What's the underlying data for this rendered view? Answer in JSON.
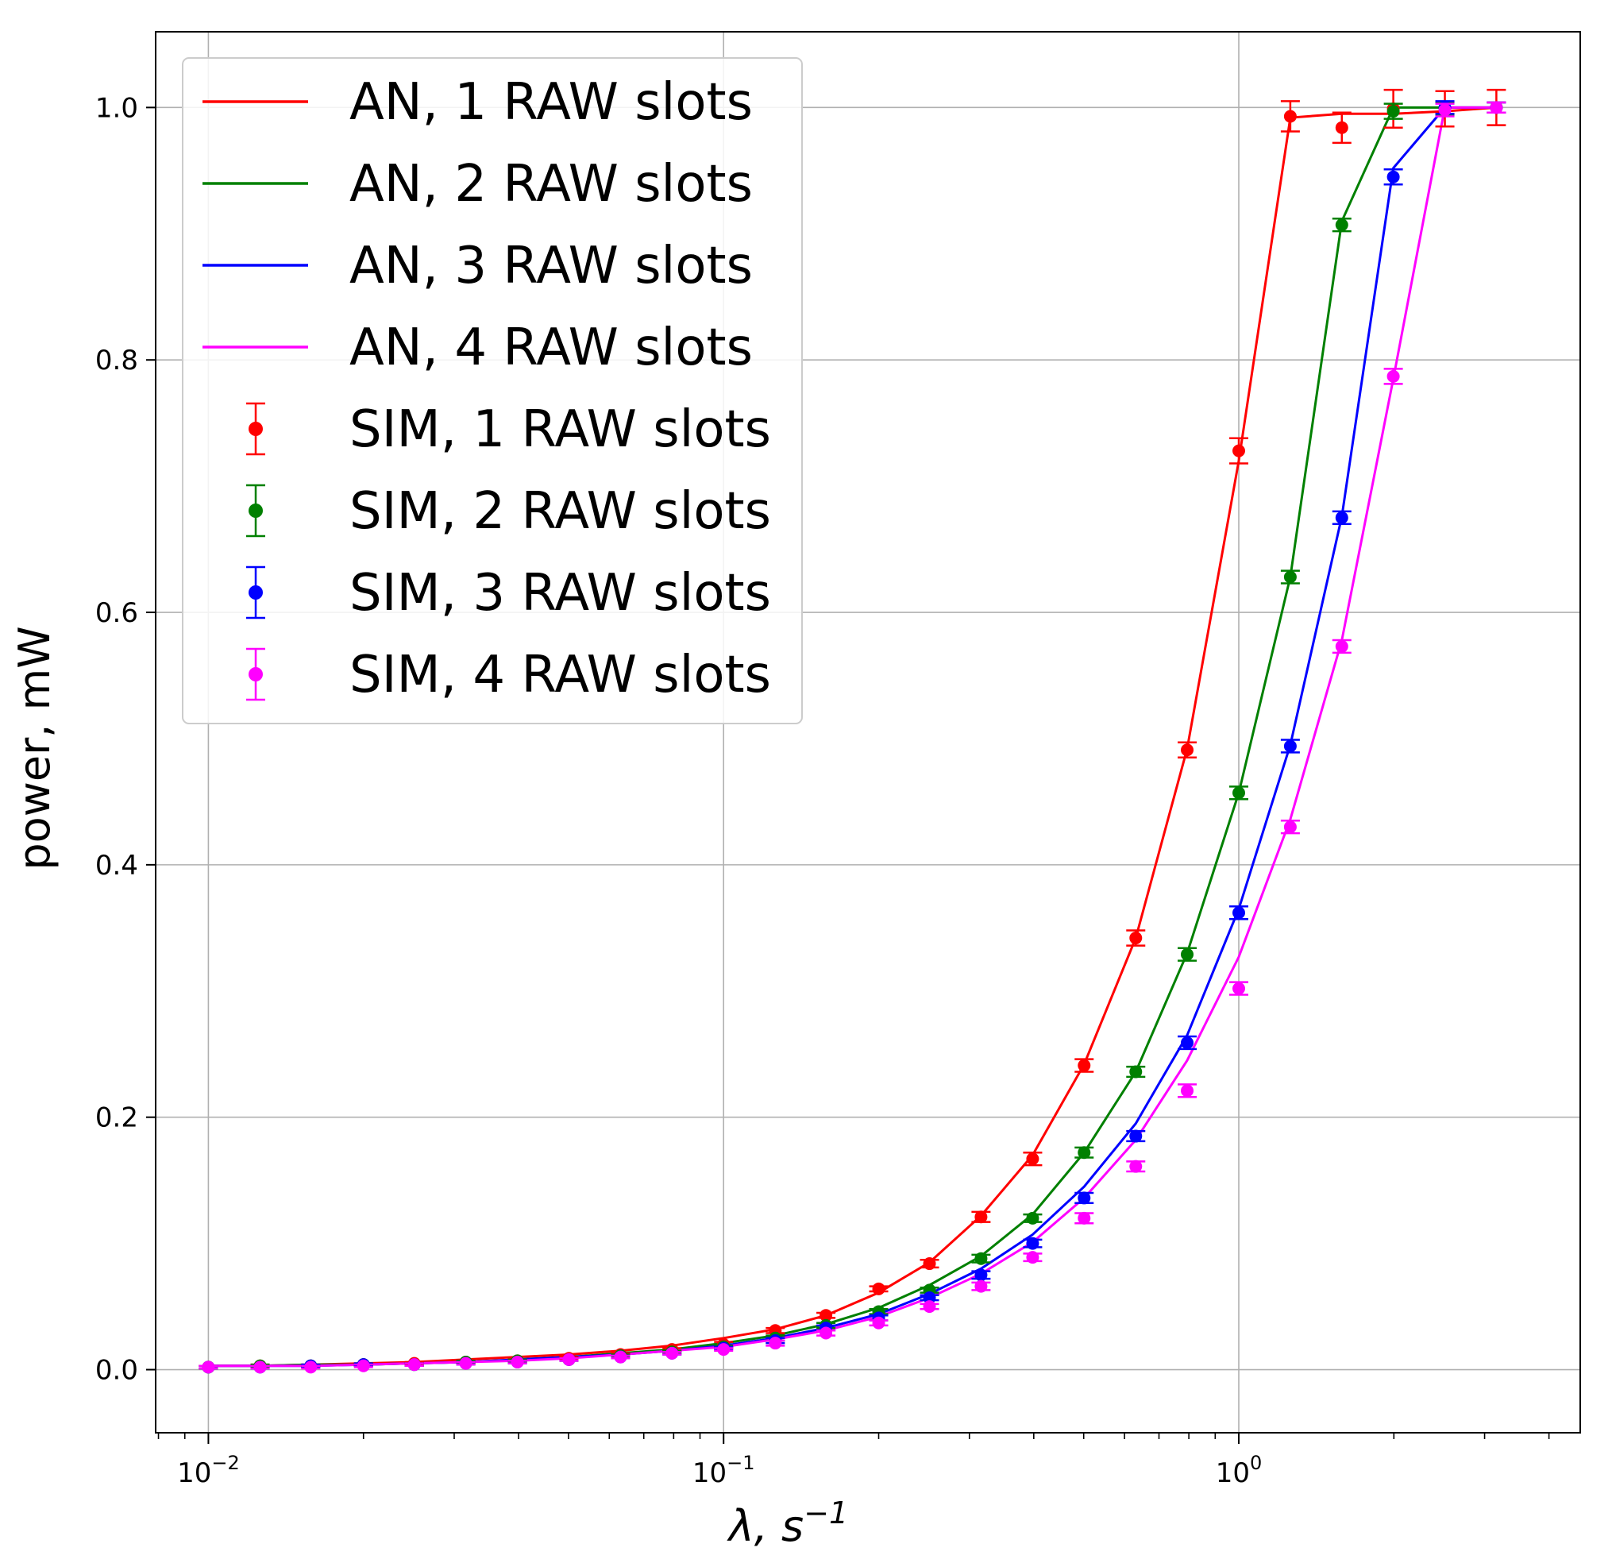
{
  "chart_data": {
    "type": "line",
    "xscale": "log",
    "xlim": [
      0.0079,
      4.6
    ],
    "ylim": [
      -0.05,
      1.06
    ],
    "grid": true,
    "legend_position": "upper-left",
    "xlabel_main": "λ, s",
    "xlabel_sup": "−1",
    "ylabel": "power, mW",
    "x_ticks": [
      {
        "value": 0.01,
        "base": "10",
        "exp": "−2"
      },
      {
        "value": 0.1,
        "base": "10",
        "exp": "−1"
      },
      {
        "value": 1,
        "base": "10",
        "exp": "0"
      }
    ],
    "y_ticks": [
      {
        "value": 0.0,
        "label": "0.0"
      },
      {
        "value": 0.2,
        "label": "0.2"
      },
      {
        "value": 0.4,
        "label": "0.4"
      },
      {
        "value": 0.6,
        "label": "0.6"
      },
      {
        "value": 0.8,
        "label": "0.8"
      },
      {
        "value": 1.0,
        "label": "1.0"
      }
    ],
    "x": [
      0.01,
      0.0126,
      0.0158,
      0.02,
      0.0251,
      0.0316,
      0.0398,
      0.0501,
      0.0631,
      0.0794,
      0.1,
      0.126,
      0.158,
      0.2,
      0.251,
      0.316,
      0.398,
      0.501,
      0.631,
      0.794,
      1.0,
      1.259,
      1.585,
      1.995,
      2.512,
      3.162
    ],
    "series": [
      {
        "name": "AN, 1 RAW slots",
        "kind": "line",
        "color": "#ff0000",
        "values": [
          0.003,
          0.003,
          0.004,
          0.005,
          0.006,
          0.008,
          0.01,
          0.012,
          0.015,
          0.019,
          0.025,
          0.032,
          0.043,
          0.061,
          0.085,
          0.122,
          0.17,
          0.242,
          0.342,
          0.492,
          0.72,
          0.992,
          0.995,
          0.995,
          0.997,
          1.0
        ]
      },
      {
        "name": "AN, 2 RAW slots",
        "kind": "line",
        "color": "#008000",
        "values": [
          0.003,
          0.003,
          0.004,
          0.004,
          0.005,
          0.006,
          0.008,
          0.01,
          0.013,
          0.016,
          0.021,
          0.027,
          0.036,
          0.049,
          0.067,
          0.09,
          0.123,
          0.172,
          0.236,
          0.33,
          0.457,
          0.628,
          0.91,
          1.0,
          1.0,
          1.0
        ]
      },
      {
        "name": "AN, 3 RAW slots",
        "kind": "line",
        "color": "#0000ff",
        "values": [
          0.003,
          0.003,
          0.003,
          0.004,
          0.005,
          0.006,
          0.008,
          0.01,
          0.012,
          0.015,
          0.019,
          0.025,
          0.033,
          0.044,
          0.06,
          0.08,
          0.107,
          0.145,
          0.195,
          0.265,
          0.365,
          0.495,
          0.676,
          0.952,
          1.0,
          1.0
        ]
      },
      {
        "name": "AN, 4 RAW slots",
        "kind": "line",
        "color": "#ff00ff",
        "values": [
          0.003,
          0.003,
          0.003,
          0.004,
          0.005,
          0.006,
          0.007,
          0.009,
          0.012,
          0.015,
          0.018,
          0.024,
          0.031,
          0.042,
          0.057,
          0.076,
          0.101,
          0.136,
          0.182,
          0.245,
          0.327,
          0.436,
          0.578,
          0.785,
          1.0,
          1.0
        ]
      },
      {
        "name": "SIM, 1 RAW slots",
        "kind": "errorbar",
        "color": "#ff0000",
        "values": [
          0.002,
          0.003,
          0.003,
          0.004,
          0.005,
          0.006,
          0.007,
          0.009,
          0.012,
          0.016,
          0.02,
          0.031,
          0.043,
          0.064,
          0.084,
          0.121,
          0.167,
          0.241,
          0.342,
          0.491,
          0.728,
          0.993,
          0.984,
          0.999,
          0.999,
          1.0
        ],
        "errors": [
          0.001,
          0.001,
          0.001,
          0.001,
          0.001,
          0.001,
          0.001,
          0.001,
          0.001,
          0.001,
          0.002,
          0.002,
          0.002,
          0.002,
          0.003,
          0.004,
          0.005,
          0.005,
          0.006,
          0.006,
          0.01,
          0.012,
          0.012,
          0.015,
          0.014,
          0.014
        ]
      },
      {
        "name": "SIM, 2 RAW slots",
        "kind": "errorbar",
        "color": "#008000",
        "values": [
          0.002,
          0.003,
          0.003,
          0.004,
          0.004,
          0.006,
          0.007,
          0.008,
          0.011,
          0.014,
          0.018,
          0.025,
          0.035,
          0.046,
          0.063,
          0.088,
          0.12,
          0.172,
          0.236,
          0.329,
          0.457,
          0.628,
          0.907,
          0.997,
          0.999,
          1.0
        ],
        "errors": [
          0.001,
          0.001,
          0.001,
          0.001,
          0.001,
          0.001,
          0.001,
          0.001,
          0.001,
          0.001,
          0.001,
          0.002,
          0.002,
          0.002,
          0.002,
          0.003,
          0.003,
          0.004,
          0.004,
          0.005,
          0.005,
          0.005,
          0.005,
          0.006,
          0.005,
          0.004
        ]
      },
      {
        "name": "SIM, 3 RAW slots",
        "kind": "errorbar",
        "color": "#0000ff",
        "values": [
          0.002,
          0.002,
          0.003,
          0.004,
          0.004,
          0.005,
          0.006,
          0.008,
          0.01,
          0.013,
          0.017,
          0.023,
          0.033,
          0.041,
          0.057,
          0.075,
          0.1,
          0.136,
          0.185,
          0.259,
          0.362,
          0.494,
          0.675,
          0.945,
          1.0,
          1.0
        ],
        "errors": [
          0.001,
          0.001,
          0.001,
          0.001,
          0.001,
          0.001,
          0.001,
          0.001,
          0.001,
          0.001,
          0.001,
          0.002,
          0.002,
          0.002,
          0.002,
          0.003,
          0.003,
          0.004,
          0.004,
          0.005,
          0.005,
          0.005,
          0.005,
          0.006,
          0.005,
          0.004
        ]
      },
      {
        "name": "SIM, 4 RAW slots",
        "kind": "errorbar",
        "color": "#ff00ff",
        "values": [
          0.002,
          0.002,
          0.002,
          0.003,
          0.004,
          0.005,
          0.006,
          0.008,
          0.01,
          0.013,
          0.016,
          0.021,
          0.029,
          0.037,
          0.05,
          0.066,
          0.089,
          0.12,
          0.161,
          0.221,
          0.302,
          0.43,
          0.573,
          0.787,
          0.998,
          1.0
        ],
        "errors": [
          0.001,
          0.001,
          0.001,
          0.001,
          0.001,
          0.001,
          0.001,
          0.001,
          0.001,
          0.001,
          0.001,
          0.002,
          0.002,
          0.002,
          0.002,
          0.003,
          0.003,
          0.004,
          0.004,
          0.005,
          0.005,
          0.005,
          0.005,
          0.006,
          0.005,
          0.004
        ]
      }
    ]
  }
}
